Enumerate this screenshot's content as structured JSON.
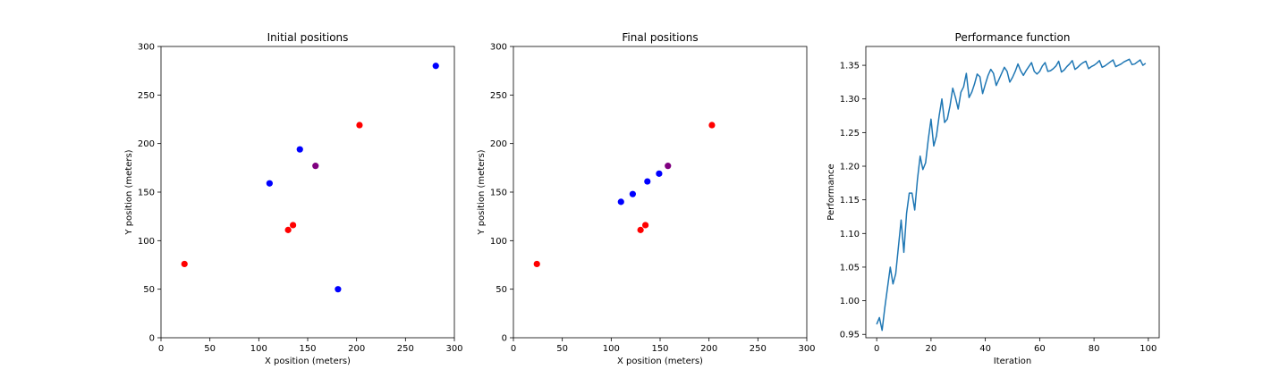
{
  "chart_data": [
    {
      "type": "scatter",
      "title": "Initial positions",
      "xlabel": "X position (meters)",
      "ylabel": "Y position (meters)",
      "xlim": [
        0,
        300
      ],
      "ylim": [
        0,
        300
      ],
      "xticks": [
        0,
        50,
        100,
        150,
        200,
        250,
        300
      ],
      "yticks": [
        0,
        50,
        100,
        150,
        200,
        250,
        300
      ],
      "grid": false,
      "points": [
        {
          "x": 24,
          "y": 76,
          "color": "#ff0000"
        },
        {
          "x": 130,
          "y": 111,
          "color": "#ff0000"
        },
        {
          "x": 135,
          "y": 116,
          "color": "#ff0000"
        },
        {
          "x": 203,
          "y": 219,
          "color": "#ff0000"
        },
        {
          "x": 111,
          "y": 159,
          "color": "#0000ff"
        },
        {
          "x": 142,
          "y": 194,
          "color": "#0000ff"
        },
        {
          "x": 181,
          "y": 50,
          "color": "#0000ff"
        },
        {
          "x": 281,
          "y": 280,
          "color": "#0000ff"
        },
        {
          "x": 158,
          "y": 177,
          "color": "#800080"
        }
      ]
    },
    {
      "type": "scatter",
      "title": "Final positions",
      "xlabel": "X position (meters)",
      "ylabel": "Y position (meters)",
      "xlim": [
        0,
        300
      ],
      "ylim": [
        0,
        300
      ],
      "xticks": [
        0,
        50,
        100,
        150,
        200,
        250,
        300
      ],
      "yticks": [
        0,
        50,
        100,
        150,
        200,
        250,
        300
      ],
      "grid": false,
      "points": [
        {
          "x": 24,
          "y": 76,
          "color": "#ff0000"
        },
        {
          "x": 130,
          "y": 111,
          "color": "#ff0000"
        },
        {
          "x": 135,
          "y": 116,
          "color": "#ff0000"
        },
        {
          "x": 203,
          "y": 219,
          "color": "#ff0000"
        },
        {
          "x": 110,
          "y": 140,
          "color": "#0000ff"
        },
        {
          "x": 122,
          "y": 148,
          "color": "#0000ff"
        },
        {
          "x": 137,
          "y": 161,
          "color": "#0000ff"
        },
        {
          "x": 149,
          "y": 169,
          "color": "#0000ff"
        },
        {
          "x": 158,
          "y": 177,
          "color": "#800080"
        }
      ]
    },
    {
      "type": "line",
      "title": "Performance function",
      "xlabel": "Iteration",
      "ylabel": "Performance",
      "xlim": [
        -4,
        104
      ],
      "ylim": [
        0.945,
        1.378
      ],
      "xticks": [
        0,
        20,
        40,
        60,
        80,
        100
      ],
      "yticks": [
        "0.95",
        "1.00",
        "1.05",
        "1.10",
        "1.15",
        "1.20",
        "1.25",
        "1.30",
        "1.35"
      ],
      "grid": false,
      "series": [
        {
          "color": "#1f77b4",
          "x": [
            0,
            1,
            2,
            3,
            4,
            5,
            6,
            7,
            8,
            9,
            10,
            11,
            12,
            13,
            14,
            15,
            16,
            17,
            18,
            19,
            20,
            21,
            22,
            23,
            24,
            25,
            26,
            27,
            28,
            29,
            30,
            31,
            32,
            33,
            34,
            35,
            36,
            37,
            38,
            39,
            40,
            41,
            42,
            43,
            44,
            45,
            46,
            47,
            48,
            49,
            50,
            51,
            52,
            53,
            54,
            55,
            56,
            57,
            58,
            59,
            60,
            61,
            62,
            63,
            64,
            65,
            66,
            67,
            68,
            69,
            70,
            71,
            72,
            73,
            74,
            75,
            76,
            77,
            78,
            79,
            80,
            81,
            82,
            83,
            84,
            85,
            86,
            87,
            88,
            89,
            90,
            91,
            92,
            93,
            94,
            95,
            96,
            97,
            98,
            99
          ],
          "y": [
            0.965,
            0.975,
            0.956,
            0.99,
            1.02,
            1.05,
            1.025,
            1.04,
            1.08,
            1.12,
            1.072,
            1.13,
            1.16,
            1.16,
            1.135,
            1.18,
            1.215,
            1.195,
            1.205,
            1.24,
            1.27,
            1.23,
            1.245,
            1.275,
            1.3,
            1.265,
            1.27,
            1.29,
            1.316,
            1.302,
            1.285,
            1.31,
            1.318,
            1.338,
            1.302,
            1.31,
            1.322,
            1.337,
            1.333,
            1.308,
            1.322,
            1.335,
            1.344,
            1.338,
            1.32,
            1.329,
            1.338,
            1.347,
            1.341,
            1.325,
            1.332,
            1.341,
            1.352,
            1.342,
            1.335,
            1.342,
            1.348,
            1.354,
            1.341,
            1.337,
            1.341,
            1.349,
            1.354,
            1.341,
            1.342,
            1.345,
            1.349,
            1.356,
            1.34,
            1.343,
            1.348,
            1.352,
            1.357,
            1.344,
            1.347,
            1.351,
            1.354,
            1.356,
            1.345,
            1.348,
            1.35,
            1.353,
            1.357,
            1.347,
            1.349,
            1.352,
            1.355,
            1.358,
            1.348,
            1.35,
            1.352,
            1.355,
            1.357,
            1.359,
            1.351,
            1.352,
            1.355,
            1.358,
            1.35,
            1.353
          ]
        }
      ]
    }
  ]
}
